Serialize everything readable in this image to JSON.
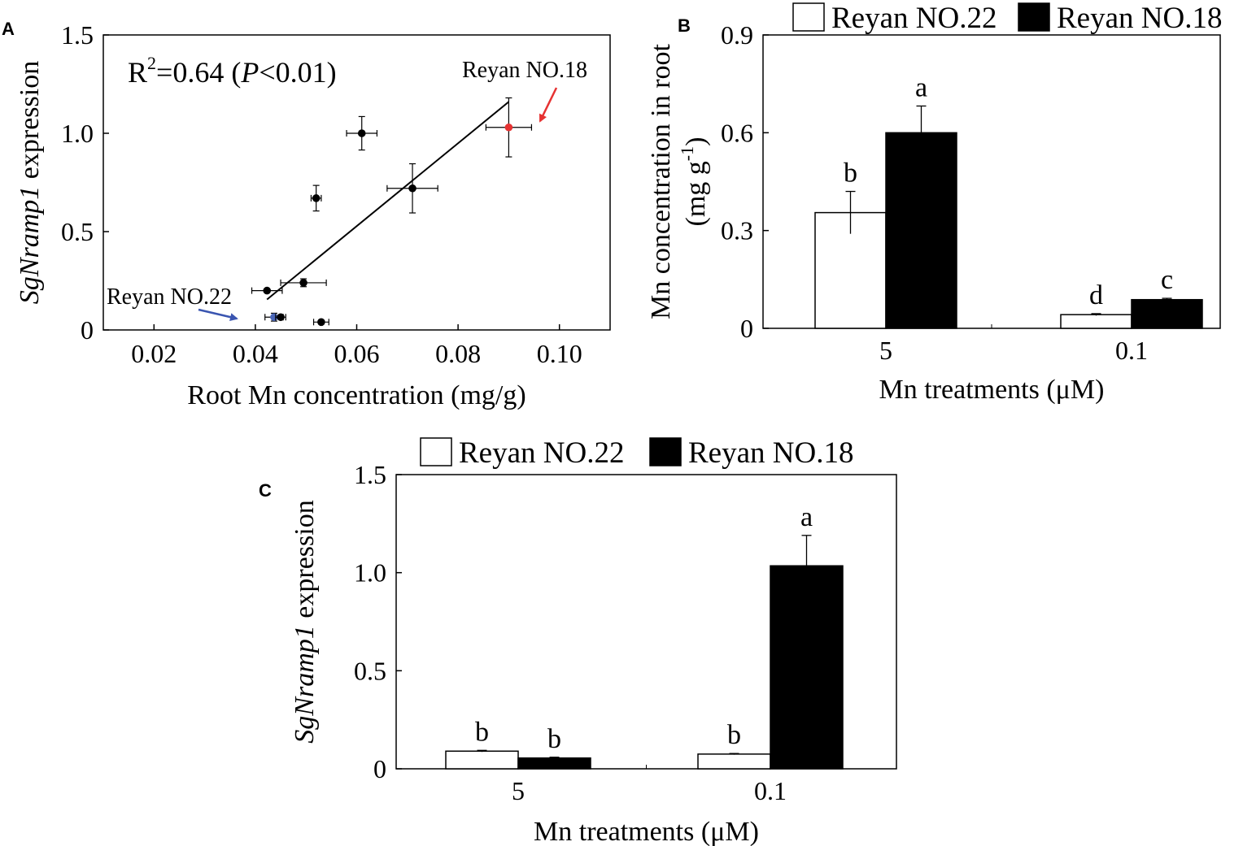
{
  "chart_data": [
    {
      "panel": "A",
      "type": "scatter",
      "xlabel": "Root Mn concentration (mg/g)",
      "ylabel": {
        "italic": "SgNramp1",
        "rest": " expression"
      },
      "xlim": [
        0.01,
        0.11
      ],
      "ylim": [
        0,
        1.5
      ],
      "xticks": [
        0.02,
        0.04,
        0.06,
        0.08,
        0.1
      ],
      "xtick_labels": [
        "0.02",
        "0.04",
        "0.06",
        "0.08",
        "0.10"
      ],
      "yticks": [
        0,
        0.5,
        1.0,
        1.5
      ],
      "ytick_labels": [
        "0",
        "0.5",
        "1.0",
        "1.5"
      ],
      "stat": {
        "r": "R",
        "sup": "2",
        "eq": "=0.64 (",
        "p": "P",
        "rest": "<0.01)"
      },
      "points": [
        {
          "x": 0.0423,
          "y": 0.2,
          "xerr": 0.003,
          "yerr": 0.0,
          "color": "#000000"
        },
        {
          "x": 0.0437,
          "y": 0.065,
          "xerr": 0.0018,
          "yerr": 0.02,
          "color": "#4a66b8"
        },
        {
          "x": 0.045,
          "y": 0.065,
          "xerr": 0.001,
          "yerr": 0.0,
          "color": "#000000"
        },
        {
          "x": 0.0495,
          "y": 0.24,
          "xerr": 0.0045,
          "yerr": 0.02,
          "color": "#000000"
        },
        {
          "x": 0.052,
          "y": 0.67,
          "xerr": 0.001,
          "yerr": 0.065,
          "color": "#000000"
        },
        {
          "x": 0.053,
          "y": 0.04,
          "xerr": 0.0015,
          "yerr": 0.0,
          "color": "#000000"
        },
        {
          "x": 0.061,
          "y": 1.0,
          "xerr": 0.003,
          "yerr": 0.085,
          "color": "#000000"
        },
        {
          "x": 0.071,
          "y": 0.72,
          "xerr": 0.005,
          "yerr": 0.125,
          "color": "#000000"
        },
        {
          "x": 0.09,
          "y": 1.03,
          "xerr": 0.0045,
          "yerr": 0.15,
          "color": "#e63232"
        }
      ],
      "fit_line": {
        "x": [
          0.0423,
          0.09
        ],
        "y": [
          0.155,
          1.16
        ]
      },
      "annotations": [
        {
          "text": "Reyan NO.18",
          "color": "#e63232"
        },
        {
          "text": "Reyan NO.22",
          "color": "#3a55b0"
        }
      ]
    },
    {
      "panel": "B",
      "type": "bar",
      "categories": [
        "5",
        "0.1"
      ],
      "series": [
        {
          "name": "Reyan NO.22",
          "fill": "#ffffff",
          "values": [
            0.355,
            0.042
          ],
          "errors": [
            0.065,
            0.003
          ],
          "letters": [
            "b",
            "d"
          ]
        },
        {
          "name": "Reyan NO.18",
          "fill": "#000000",
          "values": [
            0.6,
            0.088
          ],
          "errors": [
            0.082,
            0.004
          ],
          "letters": [
            "a",
            "c"
          ]
        }
      ],
      "xlabel": "Mn treatments (μM)",
      "ylabel": {
        "line1": "Mn concentration in root",
        "line2_pre": "(mg g",
        "line2_sup": "-1",
        "line2_post": ")"
      },
      "ylim": [
        0,
        0.9
      ],
      "yticks": [
        0,
        0.3,
        0.6,
        0.9
      ],
      "ytick_labels": [
        "0",
        "0.3",
        "0.6",
        "0.9"
      ]
    },
    {
      "panel": "C",
      "type": "bar",
      "categories": [
        "5",
        "0.1"
      ],
      "series": [
        {
          "name": "Reyan NO.22",
          "fill": "#ffffff",
          "values": [
            0.09,
            0.075
          ],
          "errors": [
            0.004,
            0.003
          ],
          "letters": [
            "b",
            "b"
          ]
        },
        {
          "name": "Reyan NO.18",
          "fill": "#000000",
          "values": [
            0.055,
            1.035
          ],
          "errors": [
            0.004,
            0.155
          ],
          "letters": [
            "b",
            "a"
          ]
        }
      ],
      "xlabel": "Mn treatments (μM)",
      "ylabel": {
        "italic": "SgNramp1",
        "rest": " expression"
      },
      "ylim": [
        0,
        1.5
      ],
      "yticks": [
        0,
        0.5,
        1.0,
        1.5
      ],
      "ytick_labels": [
        "0",
        "0.5",
        "1.0",
        "1.5"
      ]
    }
  ]
}
